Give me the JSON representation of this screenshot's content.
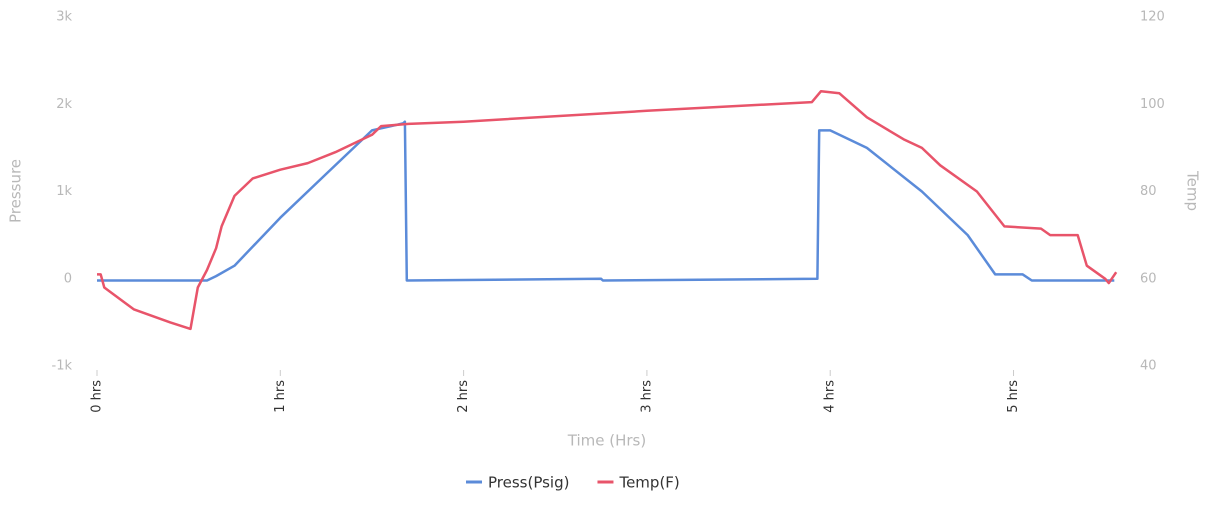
{
  "chart_data": {
    "type": "line",
    "x_label": "Time (Hrs)",
    "y_label": "Pressure",
    "y2_label": "Temp",
    "xlim": [
      0,
      5.57
    ],
    "xticks": [
      {
        "value": 0,
        "label": "0 hrs"
      },
      {
        "value": 1,
        "label": "1 hrs"
      },
      {
        "value": 2,
        "label": "2 hrs"
      },
      {
        "value": 3,
        "label": "3 hrs"
      },
      {
        "value": 4,
        "label": "4 hrs"
      },
      {
        "value": 5,
        "label": "5 hrs"
      }
    ],
    "ylim": [
      -1000,
      3000
    ],
    "yticks": [
      {
        "value": -1000,
        "label": "-1k"
      },
      0,
      {
        "value": 1000,
        "label": "1k"
      },
      {
        "value": 2000,
        "label": "2k"
      },
      {
        "value": 3000,
        "label": "3k"
      }
    ],
    "y2lim": [
      40,
      120
    ],
    "y2ticks": [
      40,
      60,
      80,
      100,
      120
    ],
    "legend": "bottom",
    "series": [
      {
        "name": "Press(Psig)",
        "color": "#5b8bd9",
        "x": [
          0.0,
          0.6,
          0.65,
          0.75,
          1.0,
          1.25,
          1.5,
          1.67,
          1.68,
          1.69,
          2.75,
          2.76,
          3.93,
          3.94,
          4.0,
          4.2,
          4.5,
          4.75,
          4.9,
          5.05,
          5.1,
          5.55
        ],
        "values": [
          -20,
          -20,
          30,
          150,
          700,
          1200,
          1700,
          1780,
          1800,
          -20,
          0,
          -20,
          0,
          1700,
          1700,
          1500,
          1000,
          500,
          50,
          50,
          -20,
          -20
        ]
      },
      {
        "name": "Temp(F)",
        "color": "#e8546a",
        "axis": "y2",
        "x": [
          0.0,
          0.02,
          0.04,
          0.2,
          0.4,
          0.51,
          0.55,
          0.6,
          0.65,
          0.68,
          0.75,
          0.85,
          1.0,
          1.15,
          1.3,
          1.5,
          1.55,
          1.7,
          2.0,
          3.0,
          3.9,
          3.95,
          4.05,
          4.2,
          4.4,
          4.5,
          4.6,
          4.8,
          4.95,
          5.15,
          5.2,
          5.35,
          5.4,
          5.5,
          5.52,
          5.56
        ],
        "values": [
          61,
          61,
          58,
          53,
          50,
          48.5,
          58,
          62,
          67,
          72,
          79,
          83,
          85,
          86.5,
          89,
          93,
          95,
          95.5,
          96,
          98.5,
          100.5,
          103,
          102.5,
          97,
          92,
          90,
          86,
          80,
          72,
          71.5,
          70,
          70,
          63,
          60,
          59,
          61.5
        ]
      }
    ]
  }
}
